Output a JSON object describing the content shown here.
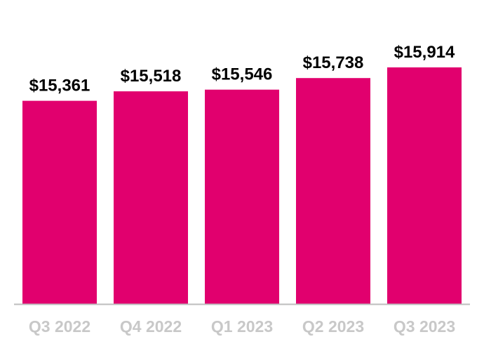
{
  "chart_data": {
    "type": "bar",
    "title": "",
    "xlabel": "",
    "ylabel": "",
    "categories": [
      "Q3 2022",
      "Q4 2022",
      "Q1 2023",
      "Q2 2023",
      "Q3 2023"
    ],
    "values": [
      15361,
      15518,
      15546,
      15738,
      15914
    ],
    "value_labels": [
      "$15,361",
      "$15,518",
      "$15,546",
      "$15,738",
      "$15,914"
    ],
    "ylim": [
      12000,
      16000
    ],
    "grid": false,
    "legend": "none",
    "colors": {
      "bar": "#e1006e",
      "axis": "#bdbdbd",
      "tick_label": "#c8c8c8",
      "value_label": "#000000"
    }
  }
}
